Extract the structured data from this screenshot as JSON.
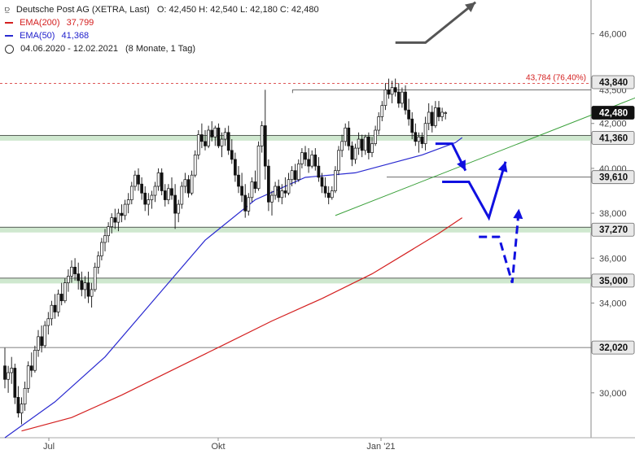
{
  "header": {
    "title": "Deutsche Post AG (XETRA, Last)",
    "ohlc": "O: 42,450   H: 42,540   L: 42,180   C: 42,480",
    "ema200_label": "EMA(200)",
    "ema200_value": "37,799",
    "ema50_label": "EMA(50)",
    "ema50_value": "41,368",
    "period": "04.06.2020 - 12.02.2021",
    "period_note": "(8 Monate, 1 Tag)"
  },
  "colors": {
    "candle": "#111111",
    "ema200": "#d42020",
    "ema50": "#2a2ad0",
    "trendline": "#3aa03a",
    "arrow_blue": "#1010e0",
    "arrow_gray": "#555555",
    "support_band": "#cfe8cf"
  },
  "chart_data": {
    "type": "candlestick",
    "ylim": [
      28.0,
      47.5
    ],
    "yticks": [
      {
        "v": 30,
        "label": "30,000"
      },
      {
        "v": 32,
        "label": "32,000"
      },
      {
        "v": 34,
        "label": "34,000"
      },
      {
        "v": 36,
        "label": "36,000"
      },
      {
        "v": 38,
        "label": "38,000"
      },
      {
        "v": 40,
        "label": "40,000"
      },
      {
        "v": 42,
        "label": "42,000"
      },
      {
        "v": 44,
        "label": "44,000"
      },
      {
        "v": 46,
        "label": "46,000"
      }
    ],
    "xticks": [
      "Jul",
      "Okt",
      "Jan '21"
    ],
    "levels": [
      {
        "v": 43.84,
        "label": "43,840",
        "style": "dark"
      },
      {
        "v": 42.48,
        "label": "42,480",
        "style": "current"
      },
      {
        "v": 41.36,
        "label": "41,360",
        "style": "band"
      },
      {
        "v": 39.61,
        "label": "39,610",
        "style": "line"
      },
      {
        "v": 37.27,
        "label": "37,270",
        "style": "band"
      },
      {
        "v": 35.0,
        "label": "35,000",
        "style": "band"
      },
      {
        "v": 32.02,
        "label": "32,020",
        "style": "line"
      }
    ],
    "extra_labels": [
      {
        "label": "43,500",
        "v": 43.5
      }
    ],
    "fib_label": "43,784 (76,40%)",
    "fib_value": 43.784,
    "candles": [
      [
        31.2,
        32.0,
        30.2,
        30.6
      ],
      [
        30.6,
        31.2,
        30.0,
        30.9
      ],
      [
        30.9,
        31.6,
        30.4,
        31.1
      ],
      [
        31.1,
        31.3,
        29.5,
        29.8
      ],
      [
        29.8,
        30.3,
        28.9,
        29.1
      ],
      [
        29.1,
        29.8,
        28.6,
        29.5
      ],
      [
        29.5,
        30.5,
        29.2,
        30.2
      ],
      [
        30.2,
        31.4,
        30.0,
        31.2
      ],
      [
        31.2,
        31.8,
        30.7,
        31.0
      ],
      [
        31.0,
        32.1,
        30.9,
        31.9
      ],
      [
        31.9,
        32.8,
        31.6,
        32.5
      ],
      [
        32.5,
        33.0,
        31.8,
        32.1
      ],
      [
        32.1,
        33.2,
        32.0,
        33.0
      ],
      [
        33.0,
        33.6,
        32.6,
        33.3
      ],
      [
        33.3,
        34.1,
        33.0,
        33.9
      ],
      [
        33.9,
        34.4,
        33.3,
        33.6
      ],
      [
        33.6,
        34.6,
        33.4,
        34.4
      ],
      [
        34.4,
        34.9,
        33.9,
        34.1
      ],
      [
        34.1,
        35.1,
        34.0,
        34.9
      ],
      [
        34.9,
        35.5,
        34.5,
        35.2
      ],
      [
        35.2,
        35.9,
        34.9,
        35.6
      ],
      [
        35.6,
        36.0,
        35.0,
        35.3
      ],
      [
        35.3,
        35.8,
        34.6,
        35.0
      ],
      [
        35.0,
        35.4,
        34.3,
        34.6
      ],
      [
        34.6,
        35.2,
        34.2,
        34.9
      ],
      [
        34.9,
        35.4,
        34.0,
        34.3
      ],
      [
        34.3,
        34.9,
        33.8,
        34.6
      ],
      [
        34.6,
        35.8,
        34.5,
        35.6
      ],
      [
        35.6,
        36.3,
        35.3,
        36.1
      ],
      [
        36.1,
        36.9,
        35.9,
        36.7
      ],
      [
        36.7,
        37.3,
        36.3,
        37.0
      ],
      [
        37.0,
        37.6,
        36.7,
        37.4
      ],
      [
        37.4,
        38.0,
        37.1,
        37.8
      ],
      [
        37.8,
        38.2,
        37.3,
        37.6
      ],
      [
        37.6,
        38.2,
        37.2,
        38.0
      ],
      [
        38.0,
        38.4,
        37.6,
        37.9
      ],
      [
        37.9,
        38.6,
        37.7,
        38.4
      ],
      [
        38.4,
        38.9,
        38.0,
        38.6
      ],
      [
        38.6,
        39.4,
        38.4,
        39.2
      ],
      [
        39.2,
        39.9,
        39.0,
        39.7
      ],
      [
        39.7,
        40.0,
        39.0,
        39.3
      ],
      [
        39.3,
        39.6,
        38.6,
        38.9
      ],
      [
        38.9,
        39.2,
        38.1,
        38.4
      ],
      [
        38.4,
        38.9,
        37.9,
        38.6
      ],
      [
        38.6,
        39.0,
        38.2,
        38.8
      ],
      [
        38.8,
        39.4,
        38.5,
        39.2
      ],
      [
        39.2,
        40.0,
        39.0,
        39.8
      ],
      [
        39.8,
        40.0,
        38.8,
        39.0
      ],
      [
        39.0,
        39.3,
        38.3,
        38.6
      ],
      [
        38.6,
        39.3,
        38.4,
        39.1
      ],
      [
        39.1,
        39.6,
        38.6,
        38.8
      ],
      [
        38.8,
        39.3,
        37.3,
        38.0
      ],
      [
        38.0,
        38.6,
        37.6,
        38.4
      ],
      [
        38.4,
        39.4,
        38.2,
        39.2
      ],
      [
        39.2,
        39.8,
        38.9,
        39.5
      ],
      [
        39.5,
        39.7,
        38.7,
        38.9
      ],
      [
        38.9,
        39.9,
        38.8,
        39.7
      ],
      [
        39.7,
        40.8,
        39.6,
        40.6
      ],
      [
        40.6,
        41.7,
        40.4,
        41.5
      ],
      [
        41.5,
        42.0,
        40.9,
        41.2
      ],
      [
        41.2,
        41.7,
        40.8,
        41.0
      ],
      [
        41.0,
        41.9,
        40.9,
        41.7
      ],
      [
        41.7,
        42.1,
        41.2,
        41.4
      ],
      [
        41.4,
        41.9,
        41.0,
        41.8
      ],
      [
        41.8,
        42.0,
        40.9,
        41.0
      ],
      [
        41.0,
        41.6,
        40.5,
        41.3
      ],
      [
        41.3,
        41.8,
        41.0,
        41.6
      ],
      [
        41.6,
        41.9,
        40.6,
        40.8
      ],
      [
        40.8,
        41.3,
        40.2,
        40.4
      ],
      [
        40.4,
        40.7,
        39.4,
        39.7
      ],
      [
        39.7,
        40.1,
        38.9,
        39.2
      ],
      [
        39.2,
        39.8,
        38.5,
        38.8
      ],
      [
        38.8,
        39.3,
        37.8,
        38.1
      ],
      [
        38.1,
        38.9,
        37.9,
        38.7
      ],
      [
        38.7,
        39.6,
        38.5,
        39.4
      ],
      [
        39.4,
        39.9,
        38.9,
        39.1
      ],
      [
        39.1,
        41.2,
        39.0,
        41.0
      ],
      [
        41.0,
        42.1,
        40.7,
        41.9
      ],
      [
        41.9,
        43.5,
        39.5,
        40.1
      ],
      [
        40.1,
        40.4,
        38.1,
        38.5
      ],
      [
        38.5,
        39.0,
        37.9,
        38.8
      ],
      [
        38.8,
        39.4,
        38.6,
        39.2
      ],
      [
        39.2,
        39.5,
        38.5,
        38.7
      ],
      [
        38.7,
        39.3,
        38.4,
        39.0
      ],
      [
        39.0,
        39.6,
        38.7,
        38.9
      ],
      [
        38.9,
        39.8,
        38.8,
        39.5
      ],
      [
        39.5,
        40.1,
        39.2,
        39.9
      ],
      [
        39.9,
        40.2,
        39.3,
        39.5
      ],
      [
        39.5,
        40.4,
        39.4,
        40.2
      ],
      [
        40.2,
        40.9,
        40.0,
        40.7
      ],
      [
        40.7,
        41.0,
        40.1,
        40.4
      ],
      [
        40.4,
        40.9,
        39.8,
        40.1
      ],
      [
        40.1,
        40.8,
        40.0,
        40.6
      ],
      [
        40.6,
        40.9,
        39.9,
        40.1
      ],
      [
        40.1,
        40.5,
        39.4,
        39.6
      ],
      [
        39.6,
        39.8,
        38.9,
        39.2
      ],
      [
        39.2,
        39.6,
        38.7,
        38.9
      ],
      [
        38.9,
        39.2,
        38.4,
        38.7
      ],
      [
        38.7,
        39.2,
        38.6,
        39.0
      ],
      [
        39.0,
        40.1,
        38.9,
        39.9
      ],
      [
        39.9,
        41.0,
        39.7,
        40.8
      ],
      [
        40.8,
        41.5,
        40.5,
        41.2
      ],
      [
        41.2,
        42.0,
        41.0,
        41.8
      ],
      [
        41.8,
        42.1,
        40.8,
        41.0
      ],
      [
        41.0,
        41.2,
        40.1,
        40.4
      ],
      [
        40.4,
        41.1,
        40.2,
        40.9
      ],
      [
        40.9,
        41.6,
        40.6,
        41.3
      ],
      [
        41.3,
        41.5,
        40.5,
        40.8
      ],
      [
        40.8,
        41.5,
        40.6,
        41.4
      ],
      [
        41.4,
        41.6,
        40.4,
        40.7
      ],
      [
        40.7,
        41.4,
        40.5,
        41.1
      ],
      [
        41.1,
        41.9,
        41.0,
        41.7
      ],
      [
        41.7,
        42.5,
        41.5,
        42.3
      ],
      [
        42.3,
        43.0,
        42.1,
        42.8
      ],
      [
        42.8,
        43.8,
        42.6,
        43.5
      ],
      [
        43.5,
        44.0,
        43.1,
        43.3
      ],
      [
        43.3,
        43.9,
        42.9,
        43.6
      ],
      [
        43.6,
        44.0,
        43.2,
        43.4
      ],
      [
        43.4,
        43.8,
        42.7,
        42.9
      ],
      [
        42.9,
        43.6,
        42.7,
        43.4
      ],
      [
        43.4,
        43.7,
        42.4,
        42.6
      ],
      [
        42.6,
        43.1,
        41.9,
        42.2
      ],
      [
        42.2,
        42.5,
        41.3,
        41.6
      ],
      [
        41.6,
        42.0,
        41.0,
        41.2
      ],
      [
        41.2,
        41.6,
        40.7,
        41.4
      ],
      [
        41.4,
        41.6,
        40.9,
        41.1
      ],
      [
        41.1,
        42.3,
        40.8,
        42.0
      ],
      [
        42.0,
        42.9,
        41.7,
        42.5
      ],
      [
        42.5,
        42.8,
        41.6,
        41.9
      ],
      [
        41.9,
        43.0,
        41.8,
        42.7
      ],
      [
        42.7,
        43.0,
        42.1,
        42.3
      ],
      [
        42.3,
        42.7,
        42.1,
        42.5
      ],
      [
        42.45,
        42.54,
        42.18,
        42.48
      ]
    ],
    "ema50": [
      [
        0,
        28.0
      ],
      [
        15,
        29.6
      ],
      [
        30,
        31.6
      ],
      [
        45,
        34.2
      ],
      [
        60,
        36.8
      ],
      [
        75,
        38.6
      ],
      [
        90,
        39.6
      ],
      [
        105,
        39.8
      ],
      [
        115,
        40.2
      ],
      [
        125,
        40.6
      ],
      [
        135,
        41.15
      ],
      [
        137,
        41.37
      ]
    ],
    "ema200": [
      [
        5,
        28.3
      ],
      [
        20,
        28.9
      ],
      [
        35,
        29.9
      ],
      [
        50,
        31.0
      ],
      [
        65,
        32.1
      ],
      [
        80,
        33.2
      ],
      [
        95,
        34.2
      ],
      [
        110,
        35.3
      ],
      [
        120,
        36.2
      ],
      [
        130,
        37.1
      ],
      [
        137,
        37.8
      ]
    ],
    "trendline": {
      "from": [
        99,
        37.9
      ],
      "to": [
        195,
        43.5
      ]
    },
    "resistance": {
      "from": [
        83,
        43.5
      ],
      "v": 43.5
    },
    "fib_dashed": {
      "from": [
        0,
        43.784
      ]
    },
    "arrows": {
      "gray": [
        [
          117,
          45.6
        ],
        [
          126,
          45.6
        ],
        [
          141,
          47.4
        ]
      ],
      "blue1": [
        [
          129,
          41.1
        ],
        [
          134,
          41.1
        ],
        [
          138,
          39.9
        ]
      ],
      "blue2": [
        [
          131,
          39.4
        ],
        [
          139,
          39.4
        ],
        [
          145,
          37.8
        ],
        [
          150,
          40.3
        ]
      ],
      "blue3": [
        [
          142,
          36.95
        ],
        [
          148,
          36.95
        ],
        [
          152,
          34.9
        ],
        [
          154,
          38.2
        ]
      ]
    }
  }
}
